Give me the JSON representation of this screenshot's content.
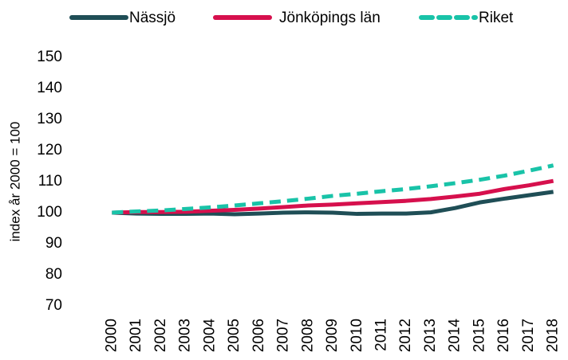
{
  "chart_data": {
    "type": "line",
    "ylabel": "index år 2000 = 100",
    "categories": [
      "2000",
      "2001",
      "2002",
      "2003",
      "2004",
      "2005",
      "2006",
      "2007",
      "2008",
      "2009",
      "2010",
      "2011",
      "2012",
      "2013",
      "2014",
      "2015",
      "2016",
      "2017",
      "2018"
    ],
    "series": [
      {
        "name": "Nässjö",
        "color": "#1f4e56",
        "dashed": false,
        "values": [
          100,
          99.7,
          99.6,
          99.6,
          99.7,
          99.5,
          99.7,
          100,
          100.1,
          100,
          99.6,
          99.7,
          99.7,
          100.1,
          101.5,
          103.3,
          104.5,
          105.6,
          106.7
        ]
      },
      {
        "name": "Jönköpings län",
        "color": "#d6104d",
        "dashed": false,
        "values": [
          100,
          100.2,
          100.2,
          100.3,
          100.6,
          100.9,
          101.3,
          101.8,
          102.3,
          102.6,
          103.0,
          103.4,
          103.8,
          104.4,
          105.2,
          106.1,
          107.6,
          108.8,
          110.2
        ]
      },
      {
        "name": "Riket",
        "color": "#19c3a8",
        "dashed": true,
        "values": [
          100,
          100.4,
          100.7,
          101.2,
          101.7,
          102.3,
          103.0,
          103.7,
          104.5,
          105.4,
          106.1,
          106.9,
          107.6,
          108.5,
          109.5,
          110.6,
          111.9,
          113.5,
          115.2
        ]
      }
    ],
    "ylim": [
      70,
      150
    ],
    "yticks": [
      70,
      80,
      90,
      100,
      110,
      120,
      130,
      140,
      150
    ],
    "grid": false,
    "legend": "top"
  }
}
